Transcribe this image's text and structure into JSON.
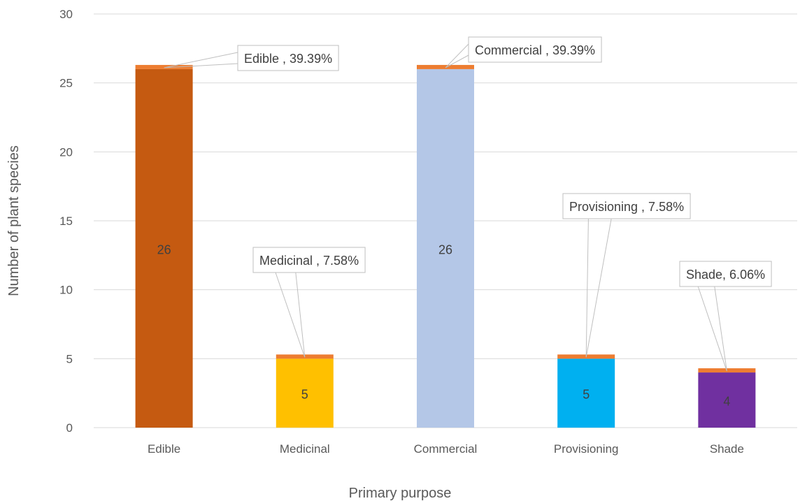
{
  "chart_data": {
    "type": "bar",
    "title": "",
    "xlabel": "Primary purpose",
    "ylabel": "Number of plant species",
    "categories": [
      "Edible",
      "Medicinal",
      "Commercial",
      "Provisioning",
      "Shade"
    ],
    "values": [
      26,
      5,
      26,
      5,
      4
    ],
    "value_labels": [
      "26",
      "5",
      "26",
      "5",
      "4"
    ],
    "percent_callouts": [
      "Edible , 39.39%",
      "Medicinal , 7.58%",
      "Commercial , 39.39%",
      "Provisioning , 7.58%",
      "Shade, 6.06%"
    ],
    "percent_values": [
      39.39,
      7.58,
      39.39,
      7.58,
      6.06
    ],
    "bar_colors": [
      "#C55A11",
      "#FFC000",
      "#B4C7E7",
      "#00B0F0",
      "#7030A0"
    ],
    "cap_color": "#ED7D31",
    "ylim": [
      0,
      30
    ],
    "yticks": [
      0,
      5,
      10,
      15,
      20,
      25,
      30
    ],
    "grid": true,
    "legend": "none"
  }
}
